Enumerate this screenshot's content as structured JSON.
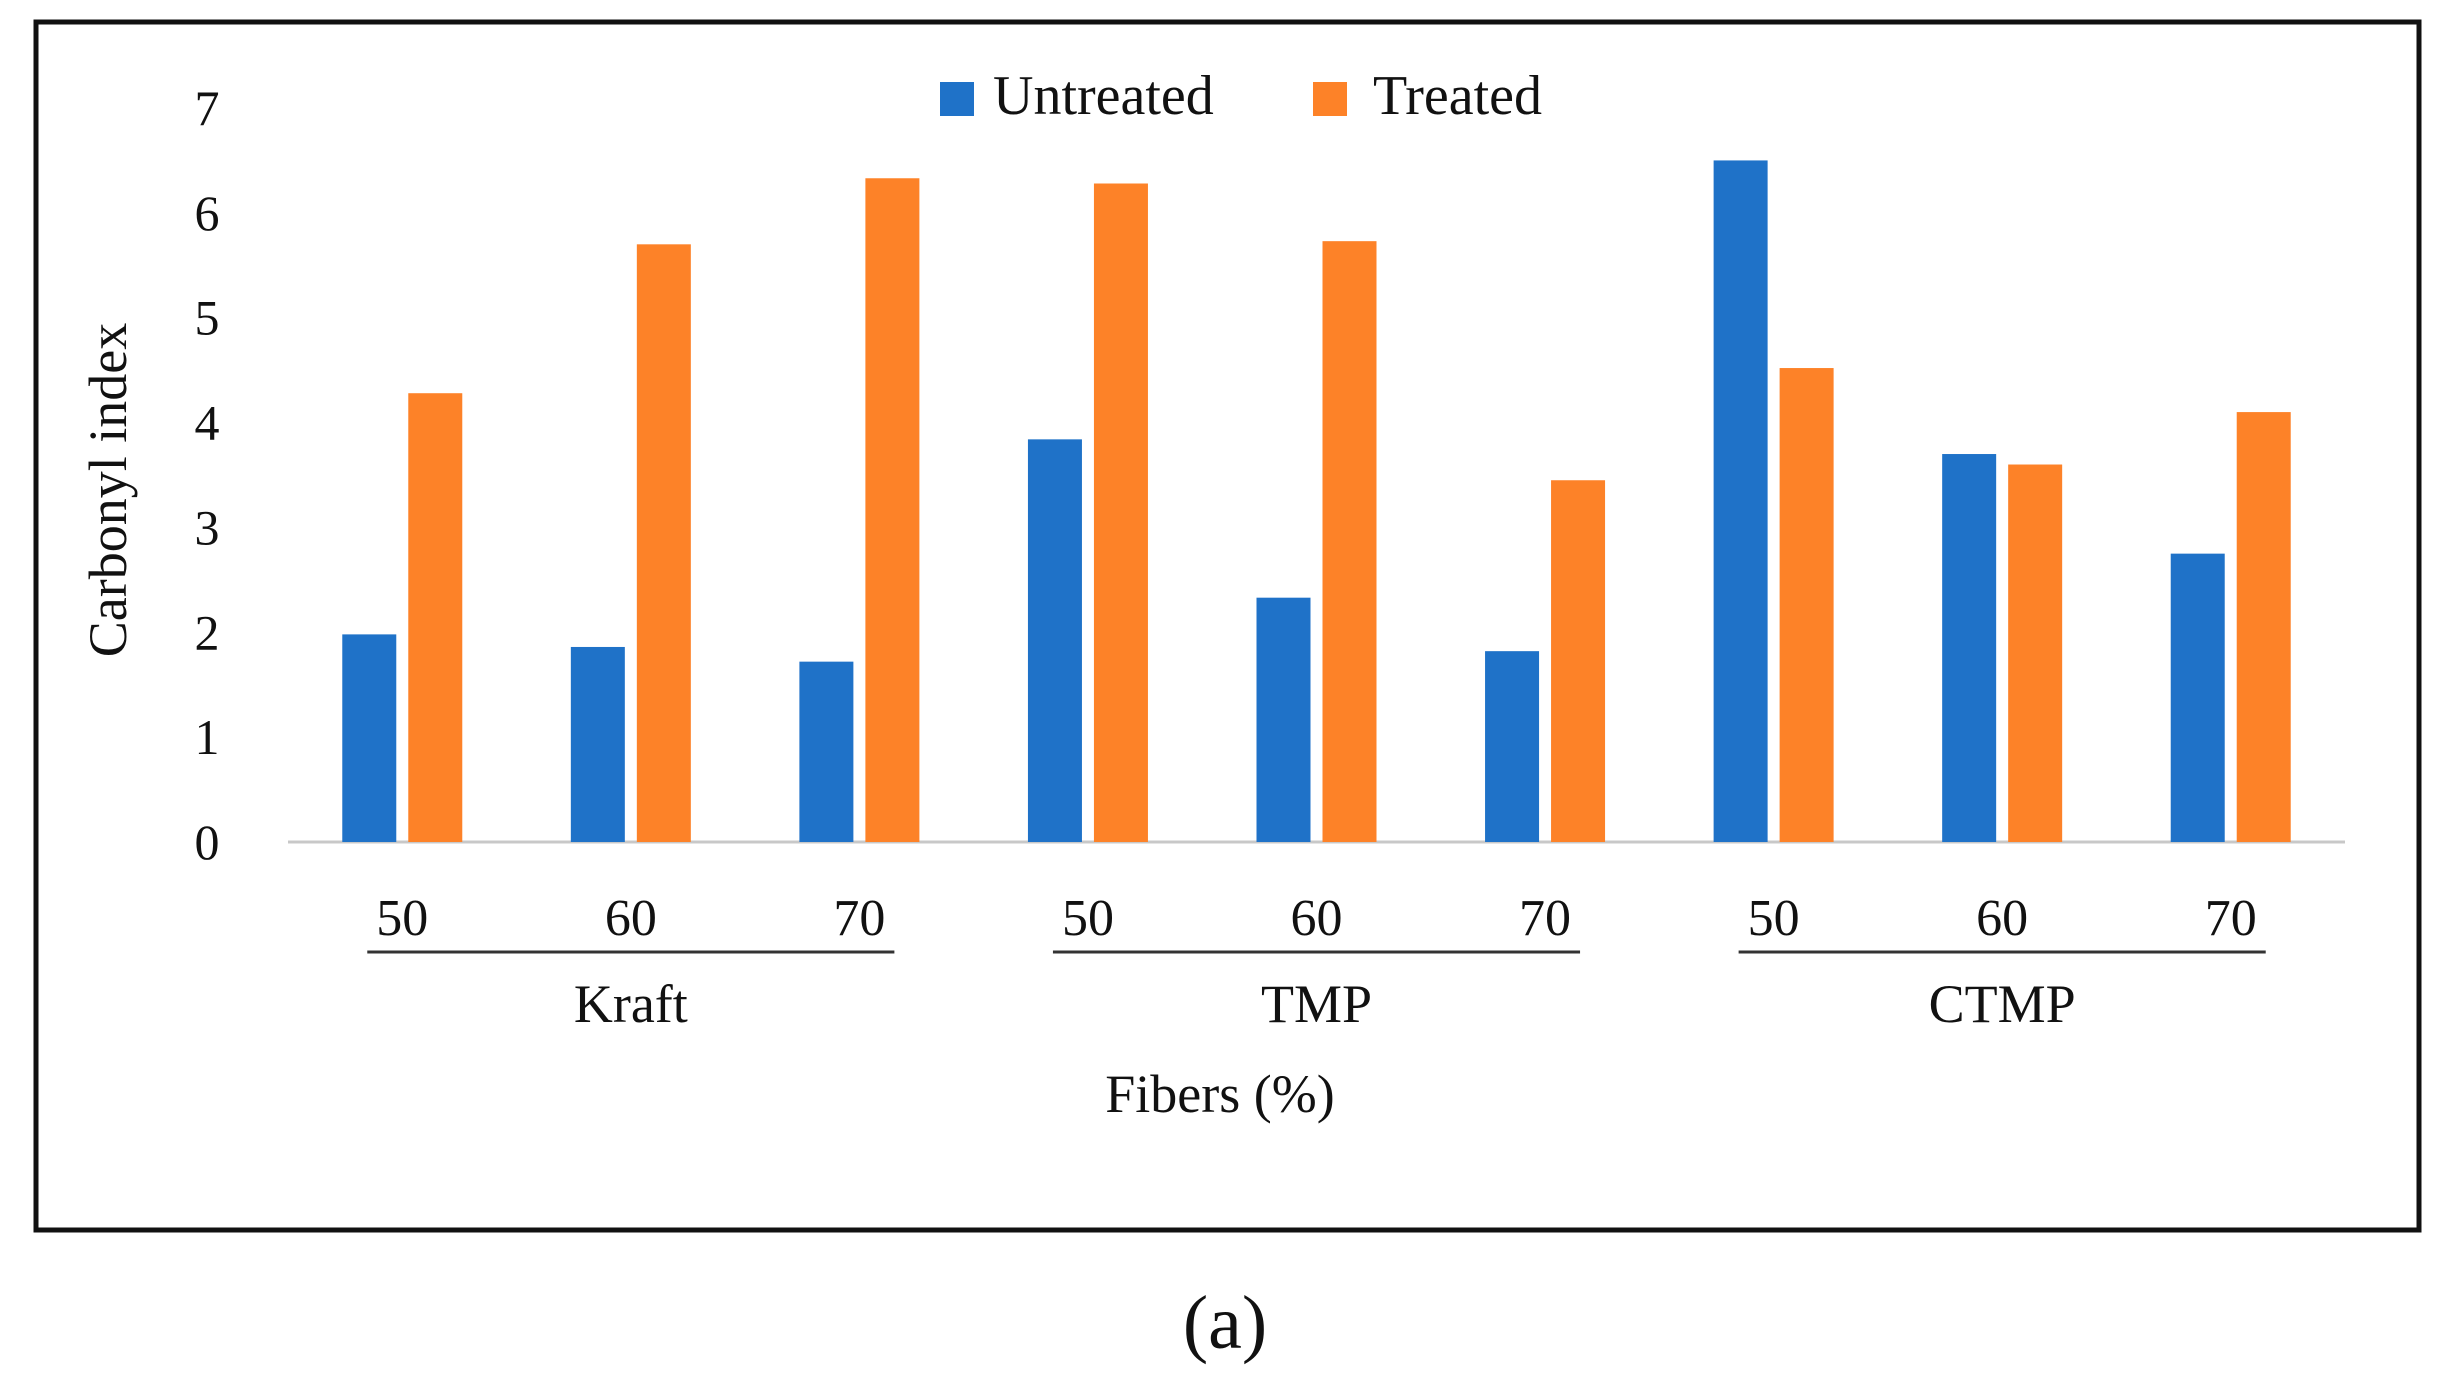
{
  "chart_data": {
    "type": "bar",
    "title": "",
    "xlabel": "Fibers (%)",
    "ylabel": "Carbonyl index",
    "ylim": [
      0,
      7
    ],
    "yticks": [
      "0",
      "1",
      "2",
      "3",
      "4",
      "5",
      "6",
      "7"
    ],
    "grid": false,
    "legend_position": "top-center",
    "categories": [
      "50",
      "60",
      "70",
      "50",
      "60",
      "70",
      "50",
      "60",
      "70"
    ],
    "groups": [
      {
        "label": "Kraft",
        "category_count": 3
      },
      {
        "label": "TMP",
        "category_count": 3
      },
      {
        "label": "CTMP",
        "category_count": 3
      }
    ],
    "series": [
      {
        "name": "Untreated",
        "color": "#1f72c8",
        "values": [
          1.98,
          1.86,
          1.72,
          3.84,
          2.33,
          1.82,
          6.5,
          3.7,
          2.75
        ]
      },
      {
        "name": "Treated",
        "color": "#fd8228",
        "values": [
          4.28,
          5.7,
          6.33,
          6.28,
          5.73,
          3.45,
          4.52,
          3.6,
          4.1
        ]
      }
    ],
    "panel_label": "(a)"
  }
}
